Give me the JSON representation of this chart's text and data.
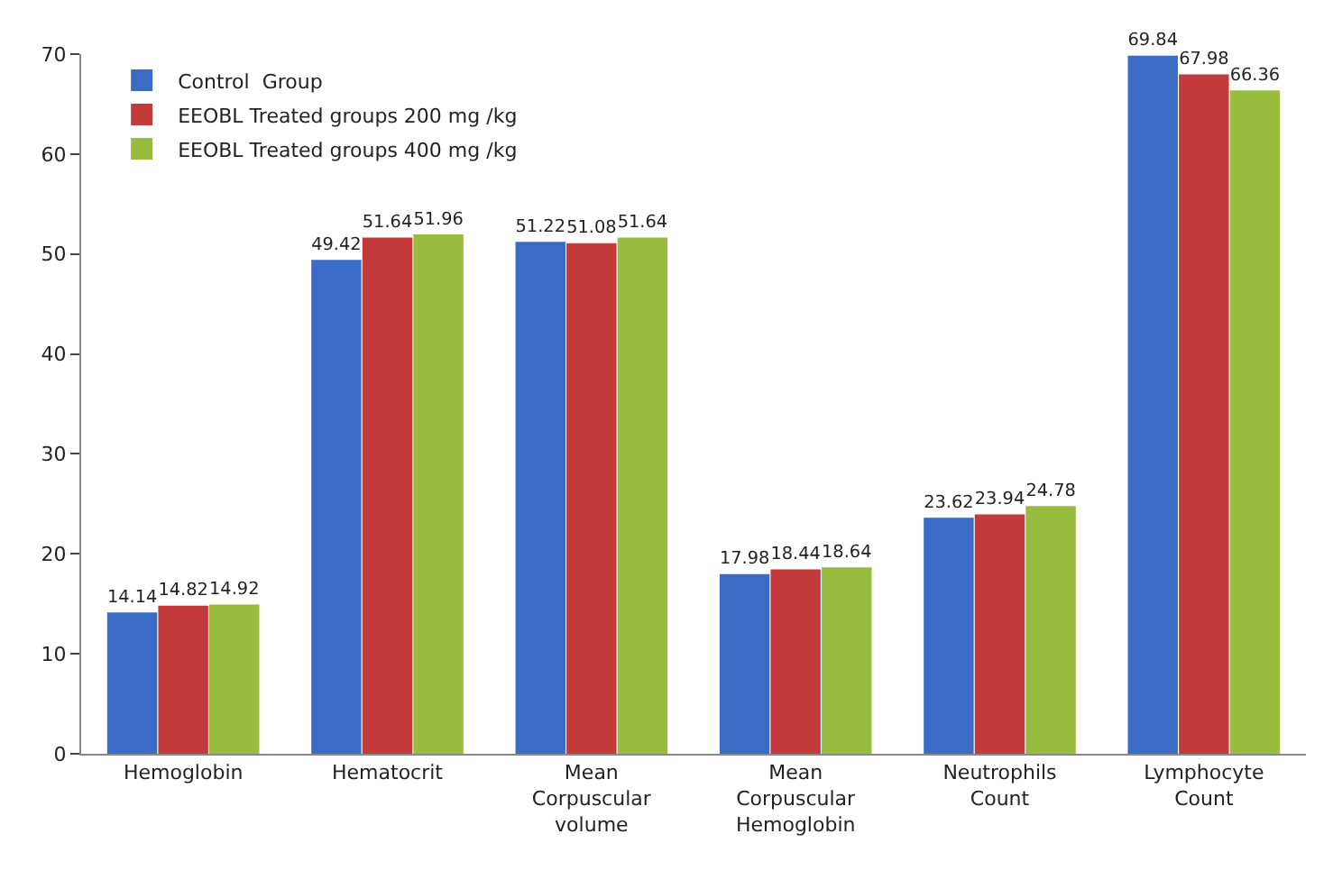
{
  "chart_data": {
    "type": "bar",
    "categories": [
      "Hemoglobin",
      "Hematocrit",
      "Mean Corpuscular volume",
      "Mean Corpuscular Hemoglobin",
      "Neutrophils Count",
      "Lymphocyte Count"
    ],
    "series": [
      {
        "name": "Control  Group",
        "color": "#3a6cc6",
        "values": [
          14.14,
          49.42,
          51.22,
          17.98,
          23.62,
          69.84
        ]
      },
      {
        "name": "EEOBL Treated groups 200 mg /kg",
        "color": "#c23a3a",
        "values": [
          14.82,
          51.64,
          51.08,
          18.44,
          23.94,
          67.98
        ]
      },
      {
        "name": "EEOBL Treated groups 400 mg /kg",
        "color": "#98bd3e",
        "values": [
          14.92,
          51.96,
          51.64,
          18.64,
          24.78,
          66.36
        ]
      }
    ],
    "ylim": [
      0,
      70
    ],
    "yticks": [
      0,
      10,
      20,
      30,
      40,
      50,
      60,
      70
    ],
    "data_labels": true,
    "legend": "top left",
    "grid": false
  }
}
